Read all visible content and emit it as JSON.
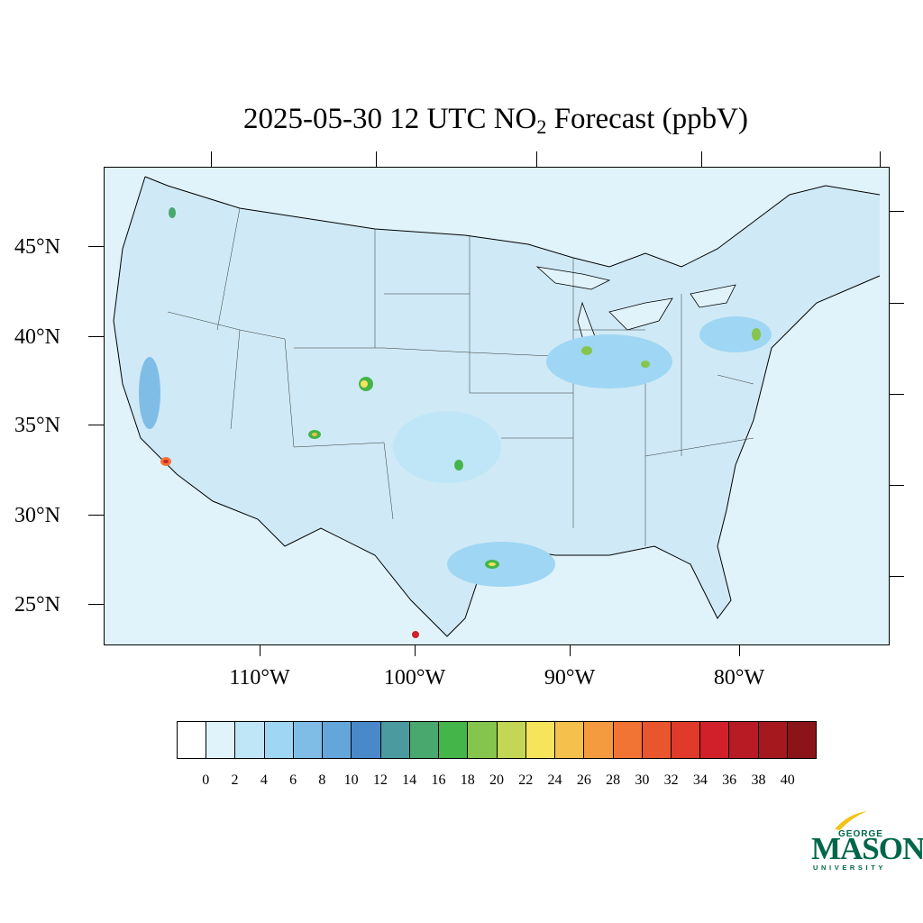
{
  "title": {
    "prefix": "2025-05-30 12 UTC NO",
    "subscript": "2",
    "suffix": " Forecast (ppbV)"
  },
  "map": {
    "lat_labels": [
      "45°N",
      "40°N",
      "35°N",
      "30°N",
      "25°N"
    ],
    "lon_labels": [
      "110°W",
      "100°W",
      "90°W",
      "80°W"
    ],
    "ocean_color": "#e0f3fb"
  },
  "colorbar": {
    "labels": [
      "0",
      "2",
      "4",
      "6",
      "8",
      "10",
      "12",
      "14",
      "16",
      "18",
      "20",
      "22",
      "24",
      "26",
      "28",
      "30",
      "32",
      "34",
      "36",
      "38",
      "40"
    ],
    "colors": [
      "#ffffff",
      "#e0f3fb",
      "#bfe6f7",
      "#9fd6f3",
      "#80bde6",
      "#65a6da",
      "#4a89c9",
      "#4b9a9f",
      "#48a86e",
      "#44b548",
      "#86c54d",
      "#c4d656",
      "#f6e55a",
      "#f6c04c",
      "#f59b3f",
      "#f27434",
      "#e9552d",
      "#df3a2a",
      "#d12029",
      "#b81b23",
      "#a5181d",
      "#8b1418"
    ]
  },
  "logo": {
    "george": "GEORGE",
    "mason": "MASON",
    "university": "UNIVERSITY"
  }
}
